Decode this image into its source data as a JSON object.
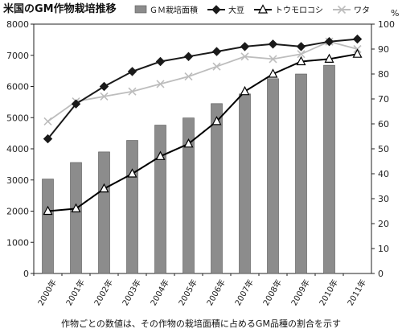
{
  "chart_data": {
    "type": "bar",
    "title": "米国のGM作物栽培推移",
    "footnote": "作物ごとの数値は、その作物の栽培面積に占めるGM品種の割合を示す",
    "categories": [
      "2000年",
      "2001年",
      "2002年",
      "2003年",
      "2004年",
      "2005年",
      "2006年",
      "2007年",
      "2008年",
      "2009年",
      "2010年",
      "2011年"
    ],
    "y_left": {
      "min": 0,
      "max": 8000,
      "ticks": [
        0,
        1000,
        2000,
        3000,
        4000,
        5000,
        6000,
        7000,
        8000
      ]
    },
    "y_right": {
      "min": 0,
      "max": 100,
      "ticks": [
        0,
        10,
        20,
        30,
        40,
        50,
        60,
        70,
        80,
        90,
        100
      ],
      "unit": "%"
    },
    "grid": false,
    "legend_position": "top",
    "series": [
      {
        "name": "ＧＭ栽培面積",
        "kind": "bar",
        "axis": "left",
        "color": "#8c8c8c",
        "values": [
          3030,
          3560,
          3900,
          4270,
          4760,
          4990,
          5450,
          5760,
          6250,
          6400,
          6680,
          null
        ]
      },
      {
        "name": "大豆",
        "kind": "line",
        "axis": "right",
        "color": "#1a1a1a",
        "marker": "diamond",
        "values": [
          54,
          68,
          75,
          81,
          85,
          87,
          89,
          91,
          92,
          91,
          93,
          94
        ]
      },
      {
        "name": "トウモロコシ",
        "kind": "line",
        "axis": "right",
        "color": "#000000",
        "marker": "triangle",
        "values": [
          25,
          26,
          34,
          40,
          47,
          52,
          61,
          73,
          80,
          85,
          86,
          88
        ]
      },
      {
        "name": "ワタ",
        "kind": "line",
        "axis": "right",
        "color": "#bdbdbd",
        "marker": "x",
        "values": [
          61,
          69,
          71,
          73,
          76,
          79,
          83,
          87,
          86,
          88,
          93,
          90
        ]
      }
    ]
  }
}
